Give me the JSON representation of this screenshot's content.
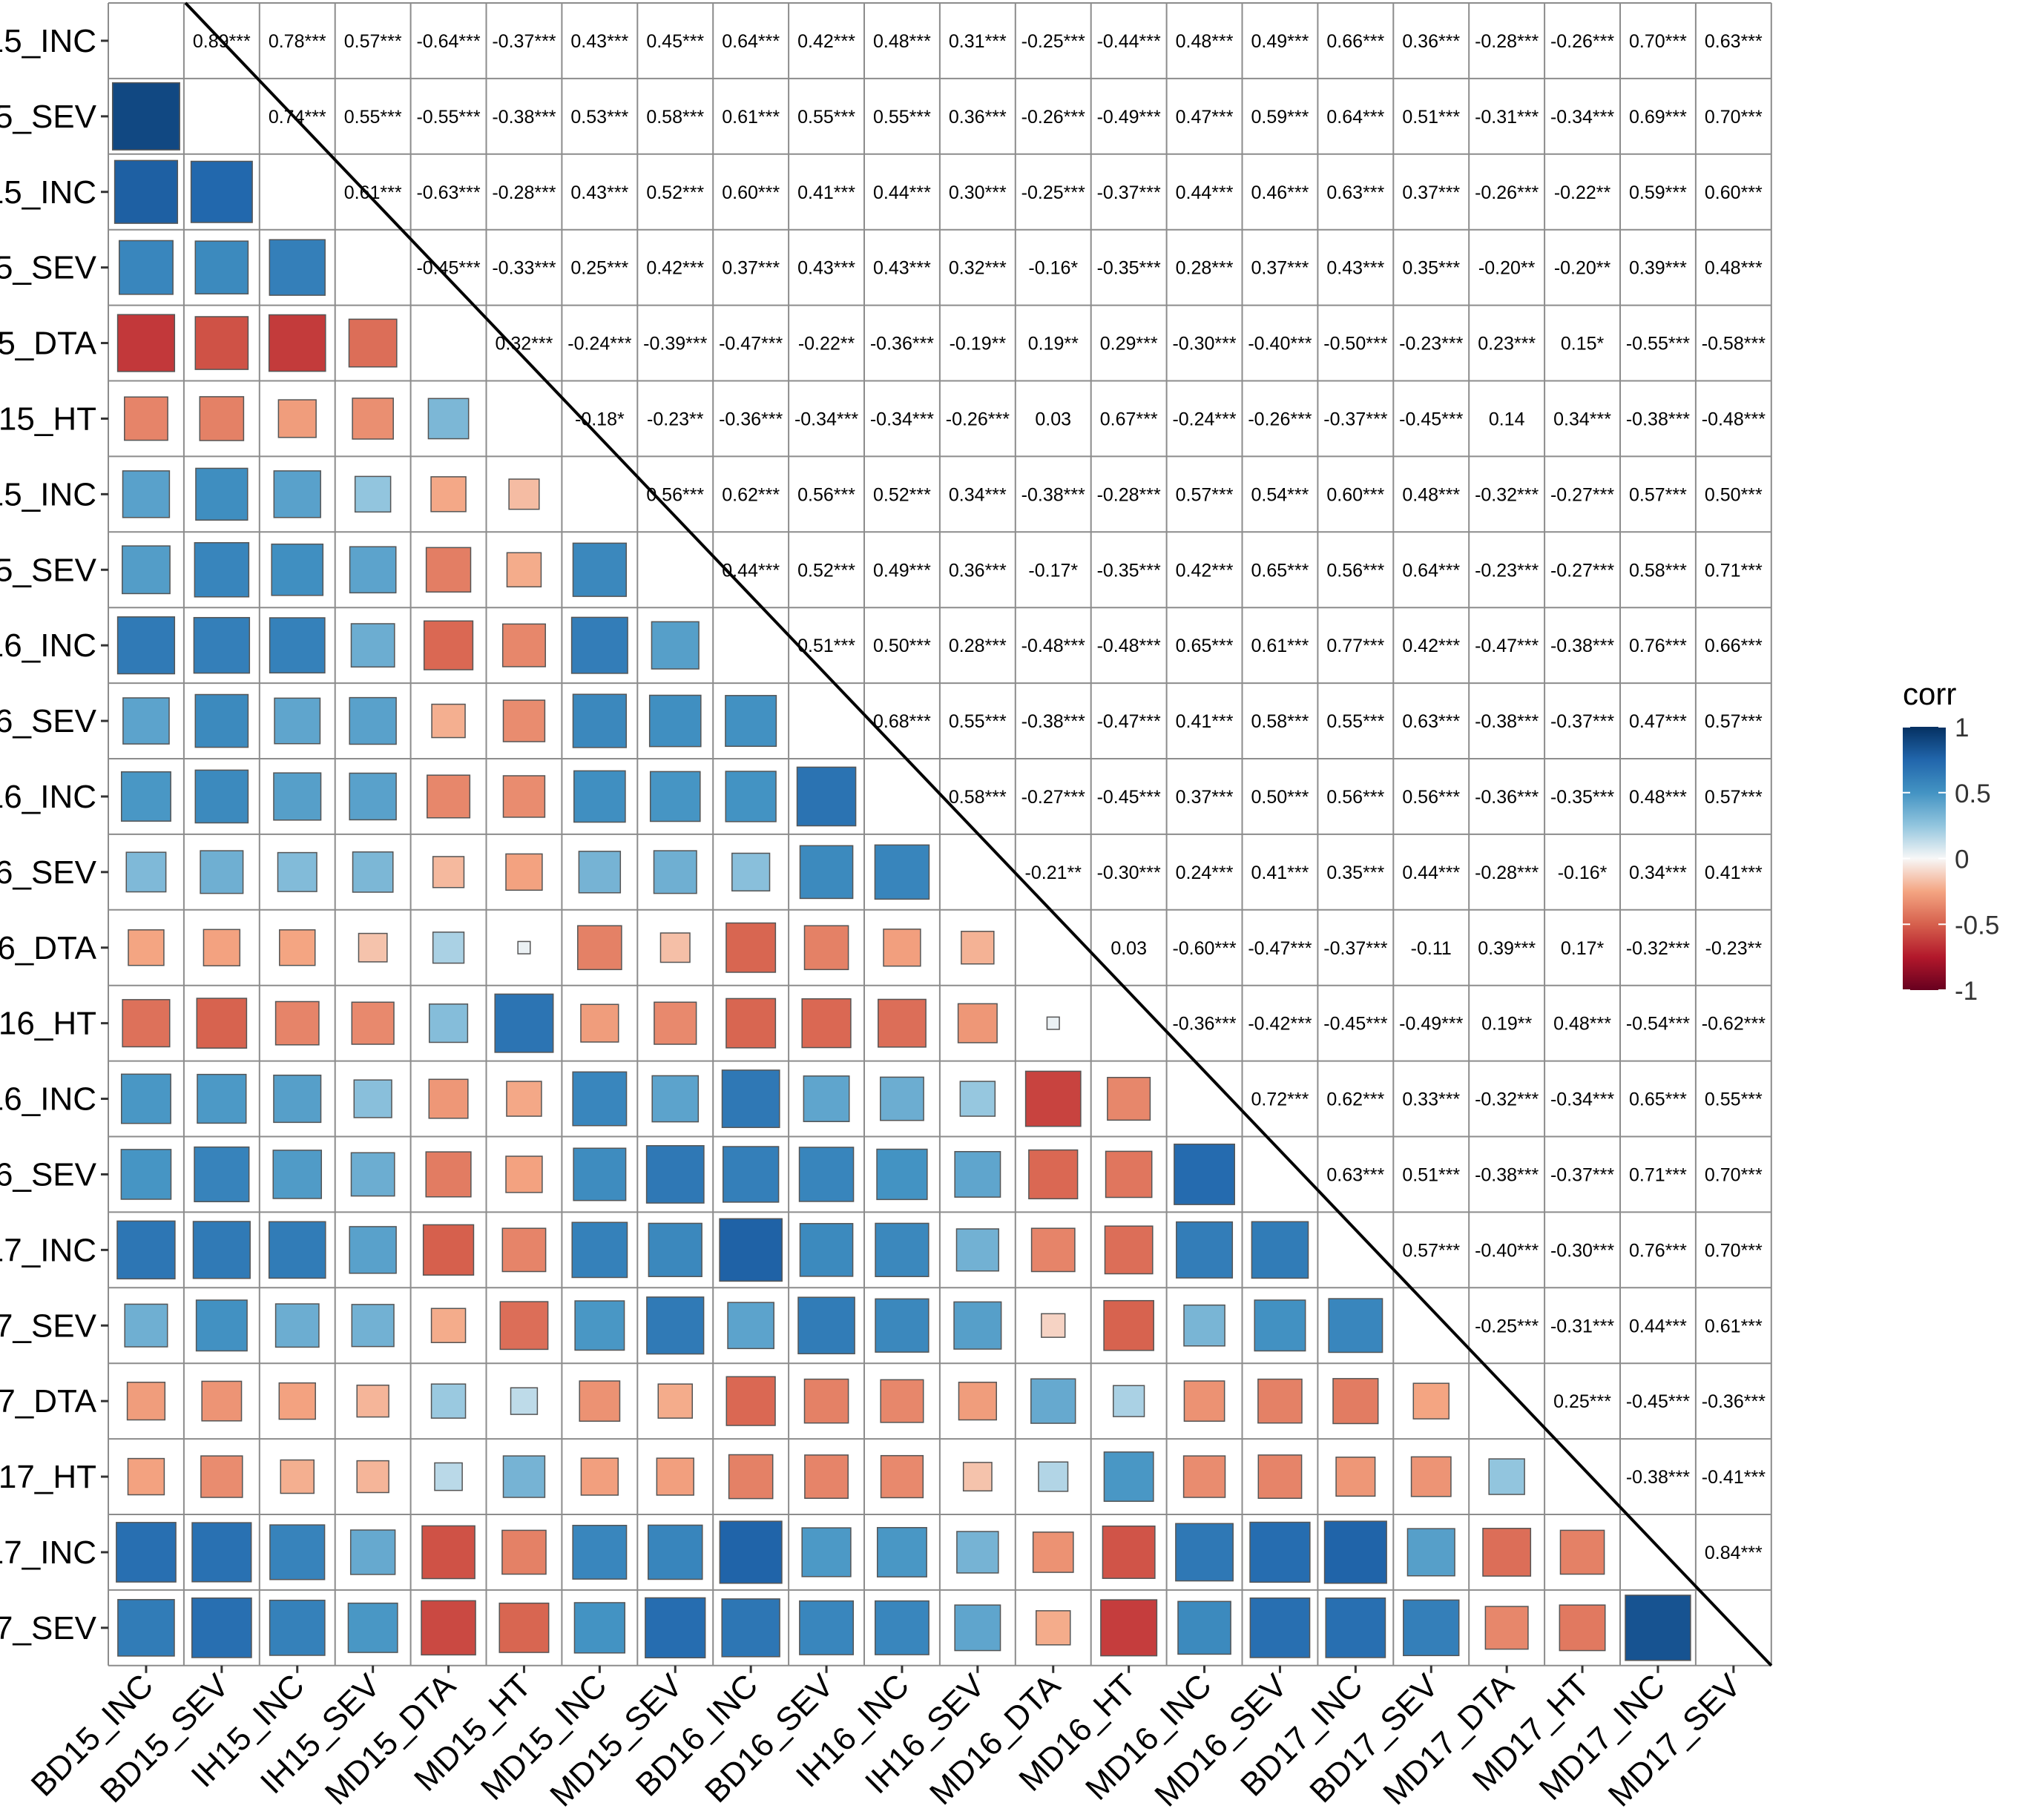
{
  "chart_data": {
    "type": "heatmap",
    "subtype": "correlation-matrix",
    "variables": [
      "BD15_INC",
      "BD15_SEV",
      "IH15_INC",
      "IH15_SEV",
      "MD15_DTA",
      "MD15_HT",
      "MD15_INC",
      "MD15_SEV",
      "BD16_INC",
      "BD16_SEV",
      "IH16_INC",
      "IH16_SEV",
      "MD16_DTA",
      "MD16_HT",
      "MD16_INC",
      "MD16_SEV",
      "BD17_INC",
      "BD17_SEV",
      "MD17_DTA",
      "MD17_HT",
      "MD17_INC",
      "MD17_SEV"
    ],
    "upper_labels": [
      [
        "0.89***",
        "0.78***",
        "0.57***",
        "-0.64***",
        "-0.37***",
        "0.43***",
        "0.45***",
        "0.64***",
        "0.42***",
        "0.48***",
        "0.31***",
        "-0.25***",
        "-0.44***",
        "0.48***",
        "0.49***",
        "0.66***",
        "0.36***",
        "-0.28***",
        "-0.26***",
        "0.70***",
        "0.63***"
      ],
      [
        "0.74***",
        "0.55***",
        "-0.55***",
        "-0.38***",
        "0.53***",
        "0.58***",
        "0.61***",
        "0.55***",
        "0.55***",
        "0.36***",
        "-0.26***",
        "-0.49***",
        "0.47***",
        "0.59***",
        "0.64***",
        "0.51***",
        "-0.31***",
        "-0.34***",
        "0.69***",
        "0.70***"
      ],
      [
        "0.61***",
        "-0.63***",
        "-0.28***",
        "0.43***",
        "0.52***",
        "0.60***",
        "0.41***",
        "0.44***",
        "0.30***",
        "-0.25***",
        "-0.37***",
        "0.44***",
        "0.46***",
        "0.63***",
        "0.37***",
        "-0.26***",
        "-0.22**",
        "0.59***",
        "0.60***"
      ],
      [
        "-0.45***",
        "-0.33***",
        "0.25***",
        "0.42***",
        "0.37***",
        "0.43***",
        "0.43***",
        "0.32***",
        "-0.16*",
        "-0.35***",
        "0.28***",
        "0.37***",
        "0.43***",
        "0.35***",
        "-0.20**",
        "-0.20**",
        "0.39***",
        "0.48***"
      ],
      [
        "0.32***",
        "-0.24***",
        "-0.39***",
        "-0.47***",
        "-0.22**",
        "-0.36***",
        "-0.19**",
        "0.19**",
        "0.29***",
        "-0.30***",
        "-0.40***",
        "-0.50***",
        "-0.23***",
        "0.23***",
        "0.15*",
        "-0.55***",
        "-0.58***"
      ],
      [
        "-0.18*",
        "-0.23**",
        "-0.36***",
        "-0.34***",
        "-0.34***",
        "-0.26***",
        "0.03",
        "0.67***",
        "-0.24***",
        "-0.26***",
        "-0.37***",
        "-0.45***",
        "0.14",
        "0.34***",
        "-0.38***",
        "-0.48***"
      ],
      [
        "0.56***",
        "0.62***",
        "0.56***",
        "0.52***",
        "0.34***",
        "-0.38***",
        "-0.28***",
        "0.57***",
        "0.54***",
        "0.60***",
        "0.48***",
        "-0.32***",
        "-0.27***",
        "0.57***",
        "0.50***"
      ],
      [
        "0.44***",
        "0.52***",
        "0.49***",
        "0.36***",
        "-0.17*",
        "-0.35***",
        "0.42***",
        "0.65***",
        "0.56***",
        "0.64***",
        "-0.23***",
        "-0.27***",
        "0.58***",
        "0.71***"
      ],
      [
        "0.51***",
        "0.50***",
        "0.28***",
        "-0.48***",
        "-0.48***",
        "0.65***",
        "0.61***",
        "0.77***",
        "0.42***",
        "-0.47***",
        "-0.38***",
        "0.76***",
        "0.66***"
      ],
      [
        "0.68***",
        "0.55***",
        "-0.38***",
        "-0.47***",
        "0.41***",
        "0.58***",
        "0.55***",
        "0.63***",
        "-0.38***",
        "-0.37***",
        "0.47***",
        "0.57***"
      ],
      [
        "0.58***",
        "-0.27***",
        "-0.45***",
        "0.37***",
        "0.50***",
        "0.56***",
        "0.56***",
        "-0.36***",
        "-0.35***",
        "0.48***",
        "0.57***"
      ],
      [
        "-0.21**",
        "-0.30***",
        "0.24***",
        "0.41***",
        "0.35***",
        "0.44***",
        "-0.28***",
        "-0.16*",
        "0.34***",
        "0.41***"
      ],
      [
        "0.03",
        "-0.60***",
        "-0.47***",
        "-0.37***",
        "-0.11",
        "0.39***",
        "0.17*",
        "-0.32***",
        "-0.23**"
      ],
      [
        "-0.36***",
        "-0.42***",
        "-0.45***",
        "-0.49***",
        "0.19**",
        "0.48***",
        "-0.54***",
        "-0.62***"
      ],
      [
        "0.72***",
        "0.62***",
        "0.33***",
        "-0.32***",
        "-0.34***",
        "0.65***",
        "0.55***"
      ],
      [
        "0.63***",
        "0.51***",
        "-0.38***",
        "-0.37***",
        "0.71***",
        "0.70***"
      ],
      [
        "0.57***",
        "-0.40***",
        "-0.30***",
        "0.76***",
        "0.70***"
      ],
      [
        "-0.25***",
        "-0.31***",
        "0.44***",
        "0.61***"
      ],
      [
        "0.25***",
        "-0.45***",
        "-0.36***"
      ],
      [
        "-0.38***",
        "-0.41***"
      ],
      [
        "0.84***"
      ],
      []
    ],
    "color_scale": {
      "low": "#67001f",
      "mid": "#f7f7f7",
      "high": "#053061",
      "limits": [
        -1,
        1
      ]
    },
    "diagonal_line": true
  },
  "legend": {
    "title": "corr",
    "ticks": [
      {
        "value": 1,
        "label": "1"
      },
      {
        "value": 0.5,
        "label": "0.5"
      },
      {
        "value": 0,
        "label": "0"
      },
      {
        "value": -0.5,
        "label": "-0.5"
      },
      {
        "value": -1,
        "label": "-1"
      }
    ]
  }
}
